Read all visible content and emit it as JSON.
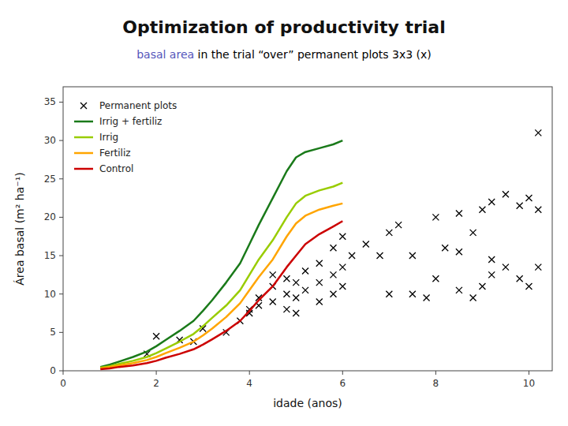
{
  "chart_data": {
    "type": "line",
    "title": "Optimization of productivity trial",
    "subtitle": [
      {
        "text": "basal area",
        "color": "#5555BB"
      },
      {
        "text": " in the trial “over” permanent plots 3x3 (x)",
        "color": "#000000"
      }
    ],
    "xlabel": "idade (anos)",
    "ylabel": "Área basal (m² ha⁻¹)",
    "xlim": [
      0,
      10.5
    ],
    "ylim": [
      0,
      37
    ],
    "xticks": [
      0,
      2,
      4,
      6,
      8,
      10
    ],
    "yticks": [
      0,
      5,
      10,
      15,
      20,
      25,
      30,
      35
    ],
    "grid": false,
    "legend": "upper-left",
    "series": [
      {
        "name": "Permanent plots",
        "type": "scatter",
        "marker": "x",
        "color": "#000000",
        "x": [
          1.8,
          2.0,
          2.5,
          2.8,
          3.0,
          3.5,
          3.8,
          4.0,
          4.0,
          4.2,
          4.2,
          4.5,
          4.5,
          4.5,
          4.8,
          4.8,
          4.8,
          5.0,
          5.0,
          5.0,
          5.2,
          5.2,
          5.5,
          5.5,
          5.5,
          5.8,
          5.8,
          5.8,
          6.0,
          6.0,
          6.0,
          6.2,
          6.5,
          6.8,
          7.0,
          7.0,
          7.2,
          7.5,
          7.5,
          7.8,
          8.0,
          8.0,
          8.2,
          8.5,
          8.5,
          8.5,
          8.8,
          8.8,
          9.0,
          9.0,
          9.2,
          9.2,
          9.2,
          9.5,
          9.5,
          9.8,
          9.8,
          10.0,
          10.0,
          10.2,
          10.2,
          10.2
        ],
        "values": [
          2.2,
          4.5,
          4.0,
          3.8,
          5.5,
          5.0,
          6.5,
          8.0,
          7.5,
          8.5,
          9.5,
          9.0,
          11.0,
          12.5,
          8.0,
          10.0,
          12.0,
          7.5,
          9.5,
          11.5,
          10.5,
          13.0,
          9.0,
          11.5,
          14.0,
          10.0,
          12.5,
          16.0,
          11.0,
          13.5,
          17.5,
          15.0,
          16.5,
          15.0,
          10.0,
          18.0,
          19.0,
          10.0,
          15.0,
          9.5,
          12.0,
          20.0,
          16.0,
          10.5,
          15.5,
          20.5,
          9.5,
          18.0,
          11.0,
          21.0,
          12.5,
          14.5,
          22.0,
          13.5,
          23.0,
          12.0,
          21.5,
          11.0,
          22.5,
          13.5,
          21.0,
          31.0
        ]
      },
      {
        "name": "Irrig + fertiliz",
        "type": "line",
        "line_style": "solid",
        "color": "#1a7a1a",
        "x": [
          0.8,
          1.0,
          1.2,
          1.5,
          1.8,
          2.0,
          2.2,
          2.5,
          2.8,
          3.0,
          3.2,
          3.5,
          3.8,
          4.0,
          4.2,
          4.5,
          4.8,
          5.0,
          5.2,
          5.5,
          5.8,
          6.0
        ],
        "values": [
          0.5,
          0.8,
          1.2,
          1.8,
          2.5,
          3.2,
          4.0,
          5.2,
          6.5,
          7.8,
          9.2,
          11.5,
          14.0,
          16.5,
          19.0,
          22.5,
          26.0,
          27.8,
          28.5,
          29.0,
          29.5,
          30.0
        ]
      },
      {
        "name": "Irrig",
        "type": "line",
        "line_style": "solid",
        "color": "#99CC00",
        "x": [
          0.8,
          1.0,
          1.2,
          1.5,
          1.8,
          2.0,
          2.2,
          2.5,
          2.8,
          3.0,
          3.2,
          3.5,
          3.8,
          4.0,
          4.2,
          4.5,
          4.8,
          5.0,
          5.2,
          5.5,
          5.8,
          6.0
        ],
        "values": [
          0.4,
          0.6,
          0.9,
          1.3,
          1.8,
          2.3,
          2.9,
          3.8,
          4.8,
          5.8,
          6.9,
          8.5,
          10.5,
          12.5,
          14.5,
          17.0,
          20.0,
          21.8,
          22.8,
          23.5,
          24.0,
          24.5
        ]
      },
      {
        "name": "Fertiliz",
        "type": "line",
        "line_style": "solid",
        "color": "#FFA500",
        "x": [
          0.8,
          1.0,
          1.2,
          1.5,
          1.8,
          2.0,
          2.2,
          2.5,
          2.8,
          3.0,
          3.2,
          3.5,
          3.8,
          4.0,
          4.2,
          4.5,
          4.8,
          5.0,
          5.2,
          5.5,
          5.8,
          6.0
        ],
        "values": [
          0.3,
          0.5,
          0.7,
          1.0,
          1.4,
          1.8,
          2.3,
          3.0,
          3.8,
          4.6,
          5.5,
          7.0,
          8.8,
          10.5,
          12.2,
          14.5,
          17.5,
          19.2,
          20.2,
          21.0,
          21.5,
          21.8
        ]
      },
      {
        "name": "Control",
        "type": "line",
        "line_style": "solid",
        "color": "#CC0000",
        "x": [
          0.8,
          1.0,
          1.2,
          1.5,
          1.8,
          2.0,
          2.2,
          2.5,
          2.8,
          3.0,
          3.2,
          3.5,
          3.8,
          4.0,
          4.2,
          4.5,
          4.8,
          5.0,
          5.2,
          5.5,
          5.8,
          6.0
        ],
        "values": [
          0.2,
          0.3,
          0.5,
          0.7,
          1.0,
          1.3,
          1.7,
          2.2,
          2.8,
          3.4,
          4.1,
          5.2,
          6.5,
          7.8,
          9.2,
          11.0,
          13.5,
          15.0,
          16.5,
          17.8,
          18.8,
          19.5
        ]
      }
    ]
  }
}
